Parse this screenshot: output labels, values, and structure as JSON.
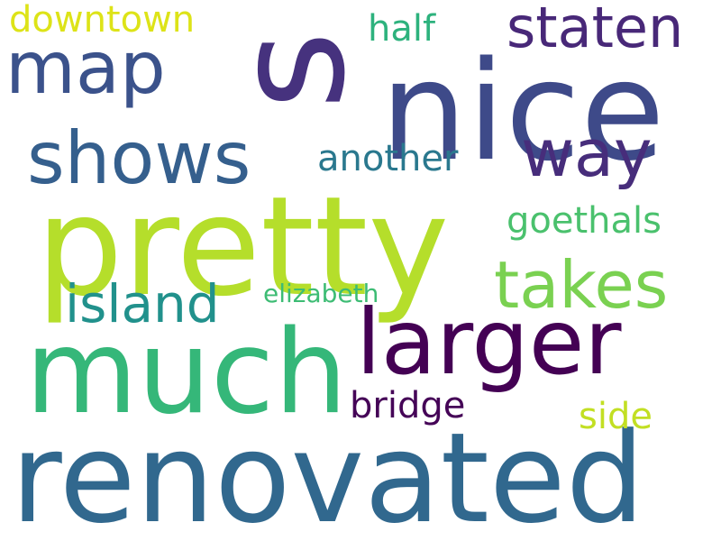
{
  "words": [
    {
      "text": "s",
      "color": "#46327e"
    },
    {
      "text": "nice",
      "color": "#3e4a89"
    },
    {
      "text": "pretty",
      "color": "#b5de2b"
    },
    {
      "text": "renovated",
      "color": "#31688e"
    },
    {
      "text": "much",
      "color": "#35b779"
    },
    {
      "text": "larger",
      "color": "#440154"
    },
    {
      "text": "shows",
      "color": "#355f8d"
    },
    {
      "text": "map",
      "color": "#3b528b"
    },
    {
      "text": "staten",
      "color": "#482878"
    },
    {
      "text": "way",
      "color": "#472d7b"
    },
    {
      "text": "takes",
      "color": "#7ad151"
    },
    {
      "text": "island",
      "color": "#21918c"
    },
    {
      "text": "another",
      "color": "#2a788e"
    },
    {
      "text": "goethals",
      "color": "#4ac16d"
    },
    {
      "text": "downtown",
      "color": "#dde318"
    },
    {
      "text": "half",
      "color": "#2db27d"
    },
    {
      "text": "bridge",
      "color": "#450457"
    },
    {
      "text": "side",
      "color": "#c2df23"
    },
    {
      "text": "elizabeth",
      "color": "#3dbc74"
    }
  ]
}
